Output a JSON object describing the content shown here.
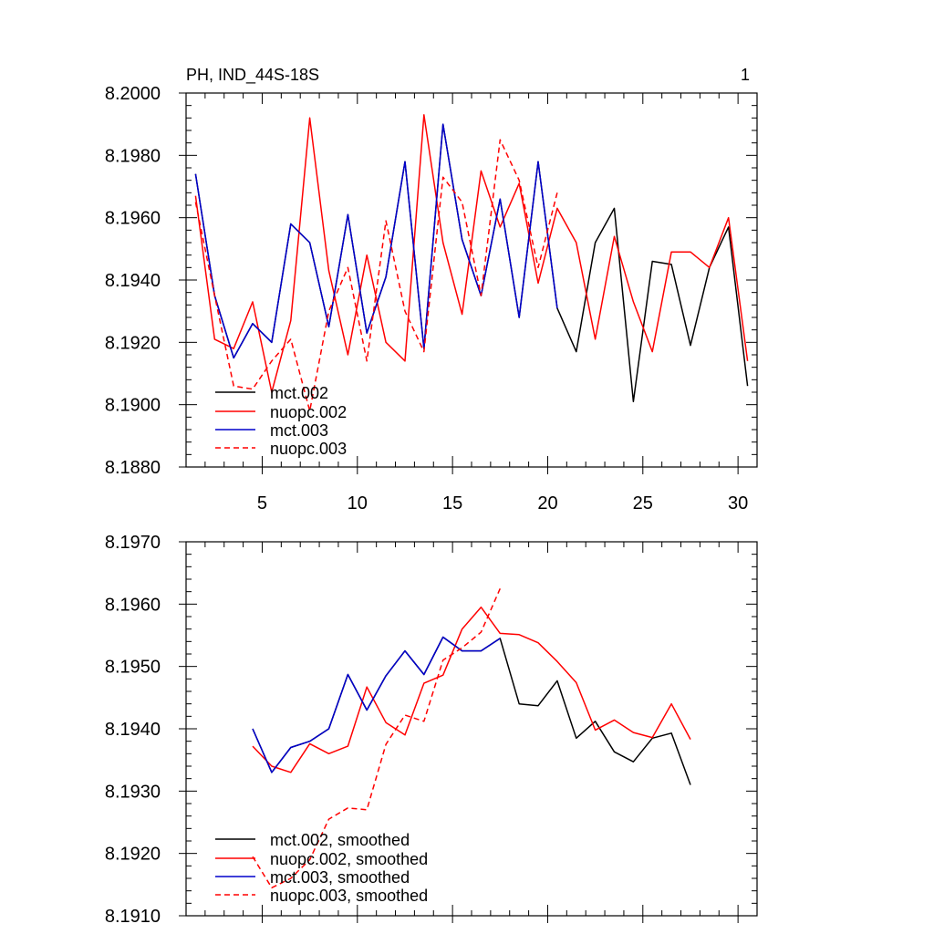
{
  "chart_data": [
    {
      "type": "line",
      "title": "PH, IND_44S-18S",
      "right_title": "1",
      "xlim": [
        1,
        31
      ],
      "ylim": [
        8.188,
        8.2
      ],
      "xticks": [
        5,
        10,
        15,
        20,
        25,
        30
      ],
      "xtick_labels": [
        "5",
        "10",
        "15",
        "20",
        "25",
        "30"
      ],
      "yticks": [
        8.188,
        8.19,
        8.192,
        8.194,
        8.196,
        8.198,
        8.2
      ],
      "ytick_labels": [
        "8.1880",
        "8.1900",
        "8.1920",
        "8.1940",
        "8.1960",
        "8.1980",
        "8.2000"
      ],
      "legend_position": "bottom-left",
      "series": [
        {
          "name": "mct.002",
          "color": "#000000",
          "dash": "solid",
          "x": [
            1.5,
            2.5,
            3.5,
            4.5,
            5.5,
            6.5,
            7.5,
            8.5,
            9.5,
            10.5,
            11.5,
            12.5,
            13.5,
            14.5,
            15.5,
            16.5,
            17.5,
            18.5,
            19.5,
            20.5,
            21.5,
            22.5,
            23.5,
            24.5,
            25.5,
            26.5,
            27.5,
            28.5,
            29.5,
            30.5
          ],
          "values": [
            8.1974,
            8.1935,
            8.1915,
            8.1926,
            8.192,
            8.1958,
            8.1952,
            8.1925,
            8.1961,
            8.1923,
            8.1941,
            8.1978,
            8.1918,
            8.199,
            8.1953,
            8.1935,
            8.1966,
            8.1928,
            8.1978,
            8.1931,
            8.1917,
            8.1952,
            8.1963,
            8.1901,
            8.1946,
            8.1945,
            8.1919,
            8.1944,
            8.1957,
            8.1906
          ]
        },
        {
          "name": "nuopc.002",
          "color": "#ff0000",
          "dash": "solid",
          "x": [
            1.5,
            2.5,
            3.5,
            4.5,
            5.5,
            6.5,
            7.5,
            8.5,
            9.5,
            10.5,
            11.5,
            12.5,
            13.5,
            14.5,
            15.5,
            16.5,
            17.5,
            18.5,
            19.5,
            20.5,
            21.5,
            22.5,
            23.5,
            24.5,
            25.5,
            26.5,
            27.5,
            28.5,
            29.5,
            30.5
          ],
          "values": [
            8.1967,
            8.1921,
            8.1918,
            8.1933,
            8.1904,
            8.1927,
            8.1992,
            8.1943,
            8.1916,
            8.1948,
            8.192,
            8.1914,
            8.1993,
            8.1952,
            8.1929,
            8.1975,
            8.1957,
            8.1971,
            8.1939,
            8.1963,
            8.1952,
            8.1921,
            8.1954,
            8.1933,
            8.1917,
            8.1949,
            8.1949,
            8.1944,
            8.196,
            8.1914
          ]
        },
        {
          "name": "mct.003",
          "color": "#0000cc",
          "dash": "solid",
          "x": [
            1.5,
            2.5,
            3.5,
            4.5,
            5.5,
            6.5,
            7.5,
            8.5,
            9.5,
            10.5,
            11.5,
            12.5,
            13.5,
            14.5,
            15.5,
            16.5,
            17.5,
            18.5,
            19.5,
            20.5
          ],
          "values": [
            8.1974,
            8.1935,
            8.1915,
            8.1926,
            8.192,
            8.1958,
            8.1952,
            8.1925,
            8.1961,
            8.1923,
            8.1941,
            8.1978,
            8.1918,
            8.199,
            8.1953,
            8.1935,
            8.1966,
            8.1928,
            8.1978,
            8.1931
          ]
        },
        {
          "name": "nuopc.003",
          "color": "#ff0000",
          "dash": "dashed",
          "x": [
            1.5,
            2.5,
            3.5,
            4.5,
            5.5,
            6.5,
            7.5,
            8.5,
            9.5,
            10.5,
            11.5,
            12.5,
            13.5,
            14.5,
            15.5,
            16.5,
            17.5,
            18.5,
            19.5,
            20.5
          ],
          "values": [
            8.1965,
            8.1935,
            8.1906,
            8.1905,
            8.1914,
            8.1921,
            8.1898,
            8.193,
            8.1944,
            8.1914,
            8.1959,
            8.193,
            8.1917,
            8.1973,
            8.1965,
            8.1935,
            8.1985,
            8.1972,
            8.1944,
            8.1968
          ]
        }
      ]
    },
    {
      "type": "line",
      "title": "",
      "xlim": [
        1,
        31
      ],
      "ylim": [
        8.191,
        8.197
      ],
      "xticks": [
        5,
        10,
        15,
        20,
        25,
        30
      ],
      "xtick_labels": [],
      "yticks": [
        8.191,
        8.192,
        8.193,
        8.194,
        8.195,
        8.196,
        8.197
      ],
      "ytick_labels": [
        "8.1910",
        "8.1920",
        "8.1930",
        "8.1940",
        "8.1950",
        "8.1960",
        "8.1970"
      ],
      "legend_position": "bottom-left",
      "series": [
        {
          "name": "mct.002, smoothed",
          "color": "#000000",
          "dash": "solid",
          "x": [
            4.5,
            5.5,
            6.5,
            7.5,
            8.5,
            9.5,
            10.5,
            11.5,
            12.5,
            13.5,
            14.5,
            15.5,
            16.5,
            17.5,
            18.5,
            19.5,
            20.5,
            21.5,
            22.5,
            23.5,
            24.5,
            25.5,
            26.5,
            27.5
          ],
          "values": [
            8.194,
            8.1933,
            8.1937,
            8.1938,
            8.194,
            8.19487,
            8.1943,
            8.19485,
            8.19525,
            8.19487,
            8.19547,
            8.19525,
            8.19525,
            8.19545,
            8.1944,
            8.19437,
            8.19477,
            8.19385,
            8.19412,
            8.19363,
            8.19347,
            8.19385,
            8.19393,
            8.1931
          ]
        },
        {
          "name": "nuopc.002, smoothed",
          "color": "#ff0000",
          "dash": "solid",
          "x": [
            4.5,
            5.5,
            6.5,
            7.5,
            8.5,
            9.5,
            10.5,
            11.5,
            12.5,
            13.5,
            14.5,
            15.5,
            16.5,
            17.5,
            18.5,
            19.5,
            20.5,
            21.5,
            22.5,
            23.5,
            24.5,
            25.5,
            26.5,
            27.5
          ],
          "values": [
            8.19372,
            8.1934,
            8.1933,
            8.19376,
            8.1936,
            8.19372,
            8.19467,
            8.1941,
            8.1939,
            8.19473,
            8.19486,
            8.1956,
            8.19595,
            8.19553,
            8.19551,
            8.19538,
            8.19508,
            8.19474,
            8.19398,
            8.19414,
            8.19394,
            8.19386,
            8.1944,
            8.19383
          ]
        },
        {
          "name": "mct.003, smoothed",
          "color": "#0000cc",
          "dash": "solid",
          "x": [
            4.5,
            5.5,
            6.5,
            7.5,
            8.5,
            9.5,
            10.5,
            11.5,
            12.5,
            13.5,
            14.5,
            15.5,
            16.5,
            17.5
          ],
          "values": [
            8.194,
            8.1933,
            8.1937,
            8.1938,
            8.194,
            8.19487,
            8.1943,
            8.19485,
            8.19525,
            8.19487,
            8.19547,
            8.19525,
            8.19525,
            8.19545
          ]
        },
        {
          "name": "nuopc.003, smoothed",
          "color": "#ff0000",
          "dash": "dashed",
          "x": [
            4.5,
            5.5,
            6.5,
            7.5,
            8.5,
            9.5,
            10.5,
            11.5,
            12.5,
            13.5,
            14.5,
            15.5,
            16.5,
            17.5
          ],
          "values": [
            8.19195,
            8.19145,
            8.1916,
            8.1919,
            8.19255,
            8.19273,
            8.1927,
            8.19375,
            8.19422,
            8.19412,
            8.1951,
            8.1953,
            8.19555,
            8.19625
          ]
        }
      ]
    }
  ]
}
